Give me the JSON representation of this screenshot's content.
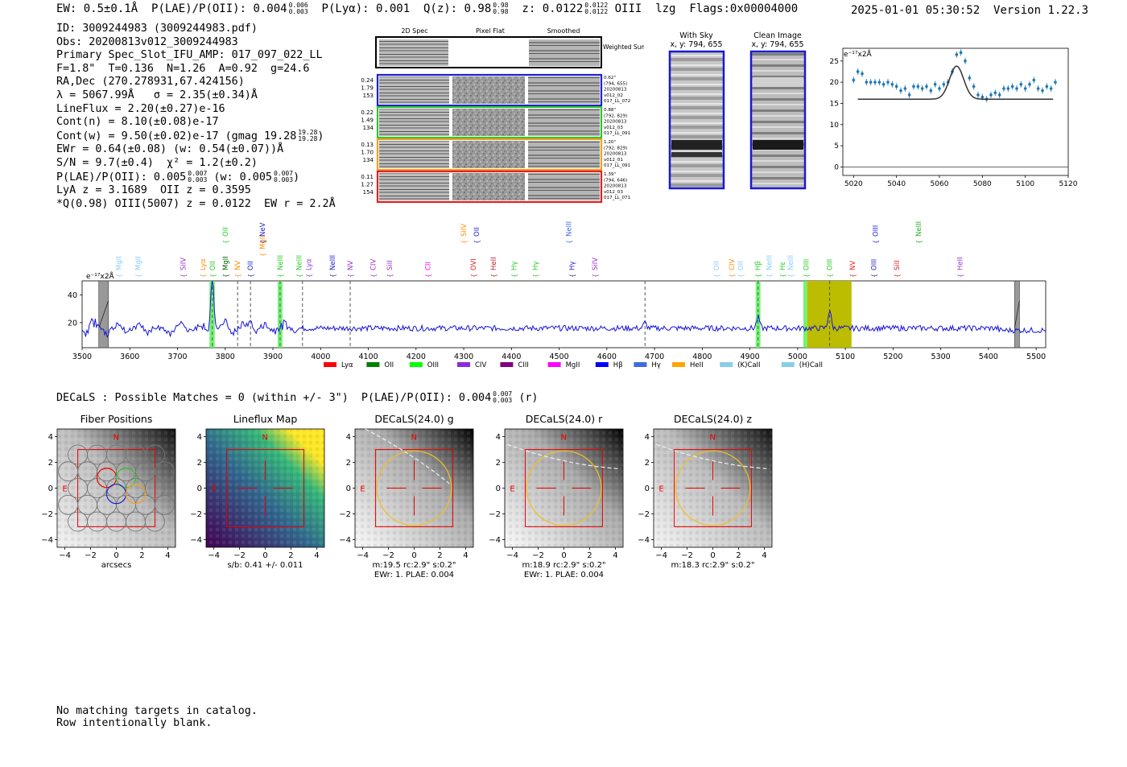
{
  "header": {
    "ew": "EW: 0.5±0.1Å",
    "plae_label": "P(LAE)/P(OII): 0.004",
    "plae_hi": "0.006",
    "plae_lo": "0.003",
    "plya": "P(Lyα): 0.001",
    "qz_label": "Q(z): 0.98",
    "qz_hi": "0.98",
    "qz_lo": "0.98",
    "z_label": "z: 0.0122",
    "z_hi": "0.0122",
    "z_lo": "0.0122",
    "z_line": "OIII",
    "lzg": "lzg",
    "flags": "Flags:0x00004000",
    "datetime": "2025-01-01 05:30:52",
    "version": "Version 1.22.3"
  },
  "info": {
    "id": "ID: 3009244983 (3009244983.pdf)",
    "obs": "Obs: 20200813v012_3009244983",
    "primary": "Primary Spec_Slot_IFU_AMP: 017_097_022_LL",
    "fwhm_line": "F=1.8\"  T=0.136  N=1.26  A=0.92  g=24.6",
    "radec": "RA,Dec (270.278931,67.424156)",
    "lambda": "λ = 5067.99Å   σ = 2.35(±0.34)Å",
    "lineflux": "LineFlux = 2.20(±0.27)e-16",
    "contn": "Cont(n) = 8.10(±0.08)e-17",
    "contw": "Cont(w) = 9.50(±0.02)e-17 (gmag 19.28",
    "contw_hi": "19.28",
    "contw_lo": "19.28",
    "contw_end": ")",
    "ewr": "EWr = 0.64(±0.08) (w: 0.54(±0.07))Å",
    "sn": "S/N = 9.7(±0.4)  χ² = 1.2(±0.2)",
    "plae2": "P(LAE)/P(OII): 0.005",
    "plae2_hi": "0.007",
    "plae2_lo": "0.003",
    "plae2_w": "(w: 0.005",
    "plae2_w_hi": "0.007",
    "plae2_w_lo": "0.003",
    "plae2_end": ")",
    "lya_z": "LyA z = 3.1689  OII z = 0.3595",
    "qline": "*Q(0.98) OIII(5007) z = 0.0122  EW r = 2.2Å"
  },
  "cutouts": {
    "col_headers": [
      "2D Spec",
      "Pixel Flat",
      "Smoothed"
    ],
    "weighted_sum": "Weighted Sum",
    "rows": [
      {
        "nums": [
          "0.24",
          "1.79",
          "153"
        ],
        "side": [
          "0.62\"",
          "(794, 655)",
          "20200813",
          "v012_02",
          "017_LL_072"
        ],
        "color": "#1f1fd0"
      },
      {
        "nums": [
          "0.22",
          "1.49",
          "134"
        ],
        "side": [
          "0.88\"",
          "(792, 829)",
          "20200813",
          "v012_03",
          "017_LL_091"
        ],
        "color": "#2ec42e"
      },
      {
        "nums": [
          "0.13",
          "1.70",
          "134"
        ],
        "side": [
          "1.20\"",
          "(792, 829)",
          "20200813",
          "v012_01",
          "017_LL_091"
        ],
        "color": "#f0a020"
      },
      {
        "nums": [
          "0.11",
          "1.27",
          "154"
        ],
        "side": [
          "1.39\"",
          "(794, 646)",
          "20200813",
          "v012_03",
          "017_LL_071"
        ],
        "color": "#e02020"
      }
    ]
  },
  "sky_panels": {
    "with_sky_title": "With Sky",
    "with_sky_xy": "x, y: 794, 655",
    "clean_title": "Clean Image",
    "clean_xy": "x, y: 794, 655"
  },
  "zoom_chart": {
    "type": "scatter",
    "ylabel": "e⁻¹⁷x2Å",
    "xlim": [
      5015,
      5120
    ],
    "ylim": [
      -2,
      28
    ],
    "xticks": [
      "5020",
      "5040",
      "5060",
      "5080",
      "5100",
      "5120"
    ],
    "yticks": [
      "0",
      "5",
      "10",
      "15",
      "20",
      "25"
    ],
    "x": [
      5020,
      5022,
      5024,
      5026,
      5028,
      5030,
      5032,
      5034,
      5036,
      5038,
      5040,
      5042,
      5044,
      5046,
      5048,
      5050,
      5052,
      5054,
      5056,
      5058,
      5060,
      5062,
      5064,
      5066,
      5068,
      5070,
      5072,
      5074,
      5076,
      5078,
      5080,
      5082,
      5084,
      5086,
      5088,
      5090,
      5092,
      5094,
      5096,
      5098,
      5100,
      5102,
      5104,
      5106,
      5108,
      5110,
      5112,
      5114
    ],
    "y": [
      20.5,
      22.5,
      22,
      20,
      20,
      20,
      20,
      19.5,
      20,
      19.5,
      19,
      18,
      18.5,
      17,
      19,
      19,
      18.5,
      19,
      18,
      19.5,
      18.5,
      19.5,
      20,
      22.5,
      26.5,
      27,
      25,
      21,
      19,
      17,
      16.5,
      16,
      17,
      17.5,
      17,
      18.5,
      18.5,
      19,
      18.5,
      19.5,
      18.5,
      19.5,
      20.5,
      18.5,
      18,
      19,
      18.5,
      20
    ],
    "fit_center": 5068,
    "fit_sigma": 2.35,
    "fit_base": 16,
    "fit_amp": 7.8
  },
  "spectrum": {
    "type": "line",
    "ylabel": "e⁻¹⁷x2Å",
    "xlim": [
      3500,
      5520
    ],
    "ylim": [
      2,
      50
    ],
    "xticks": [
      "3500",
      "3600",
      "3700",
      "3800",
      "3900",
      "4000",
      "4100",
      "4200",
      "4300",
      "4400",
      "4500",
      "4600",
      "4700",
      "4800",
      "4900",
      "5000",
      "5100",
      "5200",
      "5300",
      "5400",
      "5500"
    ],
    "yticks": [
      "20",
      "40"
    ],
    "gray_bands": [
      [
        3535,
        3555
      ],
      [
        5455,
        5465
      ]
    ],
    "green_bands": [
      [
        3767,
        3778
      ],
      [
        3910,
        3920
      ],
      [
        4912,
        4922
      ],
      [
        5012,
        5020
      ]
    ],
    "olive_band": [
      5020,
      5113
    ],
    "dashed_lines": [
      3773,
      3826,
      3853,
      3915,
      3962,
      4062,
      4680,
      4917,
      5067
    ],
    "emission_peaks": [
      {
        "x": 3773,
        "amp": 38
      },
      {
        "x": 5067,
        "amp": 13
      },
      {
        "x": 4917,
        "amp": 8
      },
      {
        "x": 3853,
        "amp": 8
      },
      {
        "x": 3800,
        "amp": 6
      },
      {
        "x": 4680,
        "amp": 4
      },
      {
        "x": 3520,
        "amp": 6
      }
    ],
    "baseline": 16,
    "lines_low": [
      {
        "label": "MgII",
        "x": 3577,
        "color": "#87cefa"
      },
      {
        "label": "MgII",
        "x": 3617,
        "color": "#87cefa"
      },
      {
        "label": "SiIV",
        "x": 3712,
        "color": "#9932cc"
      },
      {
        "label": "Lyα",
        "x": 3753,
        "color": "#ff8c00"
      },
      {
        "label": "OII",
        "x": 3773,
        "color": "#22cc22"
      },
      {
        "label": "MgII",
        "x": 3800,
        "color": "#006400"
      },
      {
        "label": "NV",
        "x": 3826,
        "color": "#ff8c00"
      },
      {
        "label": "OII",
        "x": 3853,
        "color": "#1e1ed0"
      },
      {
        "label": "NeIII",
        "x": 3915,
        "color": "#22cc22"
      },
      {
        "label": "NeIII",
        "x": 3955,
        "color": "#22cc22"
      },
      {
        "label": "Lyα",
        "x": 3975,
        "color": "#9932cc"
      },
      {
        "label": "NeIII",
        "x": 4025,
        "color": "#1e1ed0"
      },
      {
        "label": "NV",
        "x": 4062,
        "color": "#9932cc"
      },
      {
        "label": "CIV",
        "x": 4110,
        "color": "#9932cc"
      },
      {
        "label": "SiII",
        "x": 4145,
        "color": "#9932cc"
      },
      {
        "label": "CII",
        "x": 4225,
        "color": "#ff00ff"
      },
      {
        "label": "OVI",
        "x": 4320,
        "color": "#e02020"
      },
      {
        "label": "HeII",
        "x": 4362,
        "color": "#b22222"
      },
      {
        "label": "Hγ",
        "x": 4405,
        "color": "#22cc22"
      },
      {
        "label": "Hγ",
        "x": 4450,
        "color": "#22cc22"
      },
      {
        "label": "Hγ",
        "x": 4527,
        "color": "#1e1ed0"
      },
      {
        "label": "SiIV",
        "x": 4575,
        "color": "#9932cc"
      },
      {
        "label": "OII",
        "x": 4830,
        "color": "#87cefa"
      },
      {
        "label": "CIV",
        "x": 4862,
        "color": "#ff8c00"
      },
      {
        "label": "OII",
        "x": 4880,
        "color": "#87cefa"
      },
      {
        "label": "Hβ",
        "x": 4917,
        "color": "#22cc22"
      },
      {
        "label": "NeIII",
        "x": 4940,
        "color": "#87cefa"
      },
      {
        "label": "Hε",
        "x": 4968,
        "color": "#22cc22"
      },
      {
        "label": "NeIII",
        "x": 4985,
        "color": "#87cefa"
      },
      {
        "label": "OIII",
        "x": 5018,
        "color": "#22cc22"
      },
      {
        "label": "OIII",
        "x": 5067,
        "color": "#22cc22"
      },
      {
        "label": "NV",
        "x": 5115,
        "color": "#e02020"
      },
      {
        "label": "OIII",
        "x": 5160,
        "color": "#1e1ed0"
      },
      {
        "label": "SiII",
        "x": 5208,
        "color": "#e02020"
      },
      {
        "label": "HeII",
        "x": 5340,
        "color": "#9932cc"
      }
    ],
    "lines_high": [
      {
        "label": "OII",
        "x": 3800,
        "color": "#22cc22"
      },
      {
        "label": "NeV",
        "x": 3878,
        "color": "#1e1ed0"
      },
      {
        "label": "SiIV",
        "x": 4300,
        "color": "#ff8c00"
      },
      {
        "label": "OII",
        "x": 4327,
        "color": "#1e1ed0"
      },
      {
        "label": "NeIII",
        "x": 4520,
        "color": "#4169e1"
      },
      {
        "label": "OIII",
        "x": 5163,
        "color": "#1e1ed0"
      },
      {
        "label": "NeIII",
        "x": 5253,
        "color": "#22aa22"
      }
    ],
    "lines_mid": [
      {
        "label": "MgII",
        "x": 3878,
        "color": "#ff8c00"
      }
    ],
    "legend": [
      {
        "label": "Lyα",
        "color": "#ff0000"
      },
      {
        "label": "OII",
        "color": "#008000"
      },
      {
        "label": "OIII",
        "color": "#00ff00"
      },
      {
        "label": "CIV",
        "color": "#8a2be2"
      },
      {
        "label": "CIII",
        "color": "#800080"
      },
      {
        "label": "MgII",
        "color": "#ff00ff"
      },
      {
        "label": "Hβ",
        "color": "#0000ff"
      },
      {
        "label": "Hγ",
        "color": "#4169e1"
      },
      {
        "label": "HeII",
        "color": "#ffa500"
      },
      {
        "label": "(K)CaII",
        "color": "#87ceeb"
      },
      {
        "label": "(H)CaII",
        "color": "#87ceeb"
      }
    ]
  },
  "decals": {
    "summary_prefix": "DECaLS : Possible Matches = 0 (within +/- 3\")  P(LAE)/P(OII): 0.004",
    "summary_hi": "0.007",
    "summary_lo": "0.003",
    "summary_suffix": "(r)",
    "axis_ticks": [
      "−4",
      "−2",
      "0",
      "2",
      "4"
    ],
    "north_label": "N",
    "east_label": "E",
    "panels": [
      {
        "title": "Fiber Positions",
        "caption1": "arcsecs",
        "caption2": ""
      },
      {
        "title": "Lineflux Map",
        "caption1": "s/b: 0.41 +/- 0.011",
        "caption2": ""
      },
      {
        "title": "DECaLS(24.0) g",
        "caption1": "m:19.5 rc:2.9\"  s:0.2\"",
        "caption2": "EWr: 1. PLAE: 0.004"
      },
      {
        "title": "DECaLS(24.0) r",
        "caption1": "m:18.9 rc:2.9\"  s:0.2\"",
        "caption2": "EWr: 1. PLAE: 0.004"
      },
      {
        "title": "DECaLS(24.0) z",
        "caption1": "m:18.3 rc:2.9\"  s:0.2\"",
        "caption2": ""
      }
    ]
  },
  "footer": {
    "line1": "No matching targets in catalog.",
    "line2": "Row intentionally blank."
  }
}
